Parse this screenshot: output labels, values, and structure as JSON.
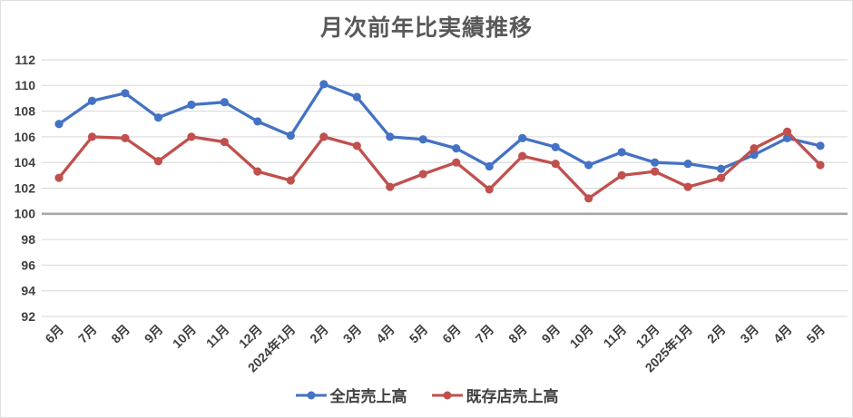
{
  "chart_data": {
    "type": "line",
    "title": "月次前年比実績推移",
    "categories": [
      "6月",
      "7月",
      "8月",
      "9月",
      "10月",
      "11月",
      "12月",
      "2024年1月",
      "2月",
      "3月",
      "4月",
      "5月",
      "6月",
      "7月",
      "8月",
      "9月",
      "10月",
      "11月",
      "12月",
      "2025年1月",
      "2月",
      "3月",
      "4月",
      "5月"
    ],
    "series": [
      {
        "name": "全店売上高",
        "color": "#4472C4",
        "values": [
          107.0,
          108.8,
          109.4,
          107.5,
          108.5,
          108.7,
          107.2,
          106.1,
          110.1,
          109.1,
          106.0,
          105.8,
          105.1,
          103.7,
          105.9,
          105.2,
          103.8,
          104.8,
          104.0,
          103.9,
          103.5,
          104.6,
          105.9,
          105.3
        ]
      },
      {
        "name": "既存店売上高",
        "color": "#C0504D",
        "values": [
          102.8,
          106.0,
          105.9,
          104.1,
          106.0,
          105.6,
          103.3,
          102.6,
          106.0,
          105.3,
          102.1,
          103.1,
          104.0,
          101.9,
          104.5,
          103.9,
          101.2,
          103.0,
          103.3,
          102.1,
          102.8,
          105.1,
          106.4,
          103.8
        ]
      }
    ],
    "ylim": [
      92,
      112
    ],
    "ytick_step": 2,
    "yticks": [
      "92",
      "94",
      "96",
      "98",
      "100",
      "102",
      "104",
      "106",
      "108",
      "110",
      "112"
    ],
    "baseline": 100,
    "grid": true,
    "legend_position": "bottom",
    "colors": {
      "gridline": "#d6d6d6",
      "baseline": "#a6a6a6",
      "axis_text": "#3f3f3f",
      "title_text": "#595959",
      "background": "#ffffff",
      "border": "#e0e0e0"
    }
  }
}
